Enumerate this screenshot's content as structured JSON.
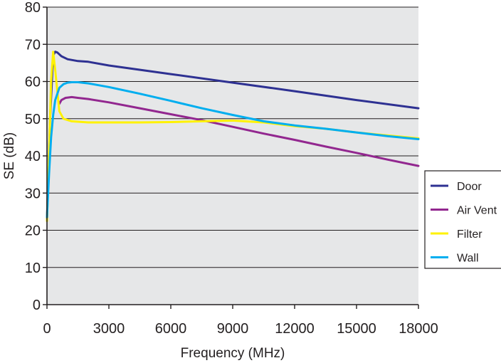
{
  "chart_data": {
    "type": "line",
    "title": "",
    "xlabel": "Frequency (MHz)",
    "ylabel": "SE (dB)",
    "xlim": [
      0,
      18000
    ],
    "ylim": [
      0,
      80
    ],
    "xticks": [
      0,
      3000,
      6000,
      9000,
      12000,
      15000,
      18000
    ],
    "xtick_labels": [
      "0",
      "3000",
      "6000",
      "9000",
      "12000",
      "15000",
      "18000"
    ],
    "yticks": [
      0,
      10,
      20,
      30,
      40,
      50,
      60,
      70,
      80
    ],
    "ytick_labels": [
      "0",
      "10",
      "20",
      "30",
      "40",
      "50",
      "60",
      "70",
      "80"
    ],
    "grid": "horizontal",
    "legend_position": "right",
    "series": [
      {
        "name": "Door",
        "color": "#2e3192",
        "x": [
          0,
          150,
          300,
          400,
          500,
          700,
          1000,
          1500,
          2000,
          3000,
          6000,
          9000,
          12000,
          15000,
          18000
        ],
        "y": [
          23,
          50,
          67,
          68,
          67.8,
          66.8,
          66,
          65.5,
          65.3,
          64.3,
          62,
          59.7,
          57.4,
          55,
          52.8
        ]
      },
      {
        "name": "Air Vent",
        "color": "#92278f",
        "x": [
          600,
          700,
          900,
          1200,
          1500,
          2000,
          3000,
          4500,
          6000,
          7500,
          9000,
          10500,
          12000,
          13500,
          15000,
          16500,
          18000
        ],
        "y": [
          54,
          55,
          55.6,
          55.8,
          55.6,
          55.3,
          54.4,
          52.8,
          51.2,
          49.6,
          47.8,
          46,
          44.3,
          42.5,
          40.8,
          39,
          37.3
        ]
      },
      {
        "name": "Filter",
        "color": "#fff200",
        "x": [
          0,
          100,
          200,
          300,
          400,
          600,
          800,
          1200,
          2000,
          3000,
          4500,
          6000,
          7500,
          9000,
          10500,
          12000,
          13500,
          15000,
          16500,
          18000
        ],
        "y": [
          22.5,
          40,
          60,
          68,
          63,
          52,
          50,
          49.3,
          49,
          49,
          49,
          49.1,
          49.3,
          49.5,
          49,
          48,
          47.3,
          46.3,
          45.5,
          44.7
        ]
      },
      {
        "name": "Wall",
        "color": "#00aeef",
        "x": [
          0,
          100,
          200,
          300,
          400,
          600,
          800,
          1000,
          1200,
          1500,
          2000,
          3000,
          4500,
          6000,
          7500,
          9000,
          10500,
          12000,
          13500,
          15000,
          16500,
          18000
        ],
        "y": [
          23.5,
          35,
          45,
          51,
          55,
          58.3,
          59.3,
          59.7,
          59.8,
          59.8,
          59.5,
          58.5,
          56.7,
          54.8,
          52.8,
          51,
          49.3,
          48.2,
          47.3,
          46.3,
          45.3,
          44.5
        ]
      }
    ]
  }
}
